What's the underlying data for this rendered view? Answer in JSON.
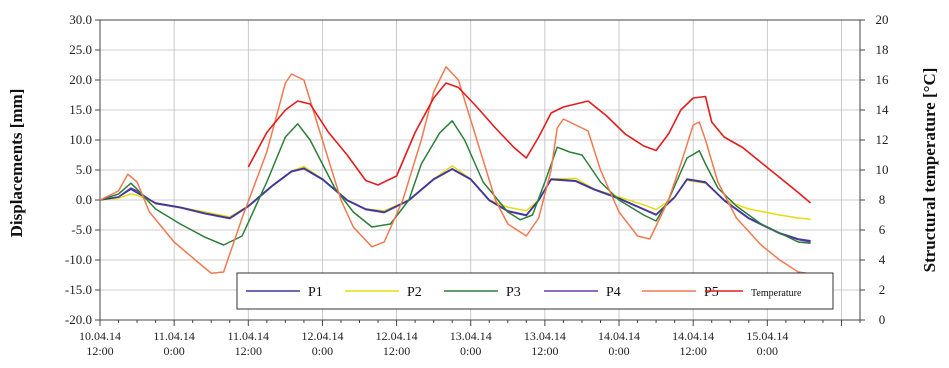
{
  "chart_data": {
    "type": "line",
    "xlabel": "",
    "ylabel": "Displacements [mm]",
    "y2label": "Structural temperature  [°C]",
    "xticks": [
      {
        "l1": "10.04.14",
        "l2": "12:00"
      },
      {
        "l1": "11.04.14",
        "l2": "0:00"
      },
      {
        "l1": "11.04.14",
        "l2": "12:00"
      },
      {
        "l1": "12.04.14",
        "l2": "0:00"
      },
      {
        "l1": "12.04.14",
        "l2": "12:00"
      },
      {
        "l1": "13.04.14",
        "l2": "0:00"
      },
      {
        "l1": "13.04.14",
        "l2": "12:00"
      },
      {
        "l1": "14.04.14",
        "l2": "0:00"
      },
      {
        "l1": "14.04.14",
        "l2": "12:00"
      },
      {
        "l1": "15.04.14",
        "l2": "0:00"
      }
    ],
    "x_unit": "hours since 10.04.14 12:00",
    "xlim": [
      0,
      123
    ],
    "ylim": [
      -20,
      30
    ],
    "yticks": [
      "30.0",
      "25.0",
      "20.0",
      "15.0",
      "10.0",
      "5.0",
      "0.0",
      "-5.0",
      "-10.0",
      "-15.0",
      "-20.0"
    ],
    "y2lim": [
      0,
      20
    ],
    "y2ticks": [
      "20",
      "18",
      "16",
      "14",
      "12",
      "10",
      "8",
      "6",
      "4",
      "2",
      "0"
    ],
    "grid": true,
    "legend_position": "bottom-center",
    "series": [
      {
        "name": "P1",
        "color": "#3a3a9a",
        "axis": "left",
        "points": [
          [
            0,
            0
          ],
          [
            3,
            0.5
          ],
          [
            5,
            1.8
          ],
          [
            6,
            1.2
          ],
          [
            9,
            -0.5
          ],
          [
            13,
            -1.2
          ],
          [
            17,
            -2.2
          ],
          [
            21,
            -3
          ],
          [
            24,
            -1
          ],
          [
            28,
            2.5
          ],
          [
            31,
            4.8
          ],
          [
            33,
            5.3
          ],
          [
            36,
            3.5
          ],
          [
            40,
            0
          ],
          [
            43,
            -1.5
          ],
          [
            46,
            -2
          ],
          [
            50,
            0
          ],
          [
            54,
            3.5
          ],
          [
            57,
            5.2
          ],
          [
            60,
            3.5
          ],
          [
            63,
            0
          ],
          [
            66,
            -1.8
          ],
          [
            69,
            -2.5
          ],
          [
            71,
            0
          ],
          [
            73,
            3.5
          ],
          [
            77,
            3.2
          ],
          [
            80,
            1.8
          ],
          [
            84,
            0.3
          ],
          [
            88,
            -1.5
          ],
          [
            90,
            -2.4
          ],
          [
            93,
            0.5
          ],
          [
            95,
            3.5
          ],
          [
            98,
            3
          ],
          [
            101,
            0
          ],
          [
            105,
            -3
          ],
          [
            110,
            -5.5
          ],
          [
            113,
            -6.5
          ],
          [
            115,
            -6.8
          ]
        ]
      },
      {
        "name": "P2",
        "color": "#e8dc10",
        "axis": "left",
        "points": [
          [
            0,
            0
          ],
          [
            3,
            0.3
          ],
          [
            5,
            1
          ],
          [
            6,
            0.8
          ],
          [
            9,
            -0.5
          ],
          [
            13,
            -1.2
          ],
          [
            17,
            -2
          ],
          [
            21,
            -2.8
          ],
          [
            24,
            -1
          ],
          [
            28,
            2.5
          ],
          [
            31,
            4.8
          ],
          [
            33,
            5.6
          ],
          [
            36,
            3.5
          ],
          [
            40,
            0
          ],
          [
            43,
            -1.5
          ],
          [
            46,
            -1.8
          ],
          [
            50,
            0
          ],
          [
            54,
            3.5
          ],
          [
            57,
            5.7
          ],
          [
            60,
            3.5
          ],
          [
            63,
            0
          ],
          [
            66,
            -1.2
          ],
          [
            69,
            -1.8
          ],
          [
            71,
            0
          ],
          [
            73,
            3.5
          ],
          [
            77,
            3.6
          ],
          [
            80,
            1.8
          ],
          [
            84,
            0.5
          ],
          [
            88,
            -0.8
          ],
          [
            90,
            -1.6
          ],
          [
            93,
            0.5
          ],
          [
            95,
            3.3
          ],
          [
            98,
            2.8
          ],
          [
            101,
            0
          ],
          [
            105,
            -1.5
          ],
          [
            110,
            -2.5
          ],
          [
            113,
            -3
          ],
          [
            115,
            -3.2
          ]
        ]
      },
      {
        "name": "P3",
        "color": "#2e7d3a",
        "axis": "left",
        "points": [
          [
            0,
            0
          ],
          [
            3,
            1
          ],
          [
            5,
            2.8
          ],
          [
            6,
            1.8
          ],
          [
            9,
            -1.5
          ],
          [
            13,
            -4
          ],
          [
            17,
            -6.2
          ],
          [
            20,
            -7.5
          ],
          [
            23,
            -6
          ],
          [
            27,
            3
          ],
          [
            30,
            10.5
          ],
          [
            32,
            12.7
          ],
          [
            34,
            10
          ],
          [
            38,
            2
          ],
          [
            41,
            -2
          ],
          [
            44,
            -4.5
          ],
          [
            47,
            -4
          ],
          [
            50,
            0
          ],
          [
            52,
            6
          ],
          [
            55,
            11.2
          ],
          [
            57,
            13.2
          ],
          [
            59,
            10
          ],
          [
            62,
            3
          ],
          [
            66,
            -2
          ],
          [
            68,
            -3.3
          ],
          [
            70,
            -2.5
          ],
          [
            72,
            3
          ],
          [
            74,
            8.8
          ],
          [
            76,
            8
          ],
          [
            78,
            7.5
          ],
          [
            81,
            3
          ],
          [
            84,
            0
          ],
          [
            88,
            -2.5
          ],
          [
            90,
            -3.5
          ],
          [
            92,
            0
          ],
          [
            95,
            7
          ],
          [
            97,
            8.2
          ],
          [
            98,
            6
          ],
          [
            100,
            2
          ],
          [
            103,
            -1
          ],
          [
            107,
            -4
          ],
          [
            110,
            -5.5
          ],
          [
            113,
            -7
          ],
          [
            115,
            -7.2
          ]
        ]
      },
      {
        "name": "P4",
        "color": "#6a3ab0",
        "axis": "left",
        "points": [
          [
            0,
            0
          ],
          [
            3,
            0.5
          ],
          [
            5,
            2
          ],
          [
            6,
            1.5
          ],
          [
            9,
            -0.6
          ],
          [
            13,
            -1.3
          ],
          [
            17,
            -2.3
          ],
          [
            21,
            -3.1
          ],
          [
            24,
            -1.1
          ],
          [
            28,
            2.4
          ],
          [
            31,
            4.7
          ],
          [
            33,
            5.2
          ],
          [
            36,
            3.4
          ],
          [
            40,
            -0.1
          ],
          [
            43,
            -1.6
          ],
          [
            46,
            -2.1
          ],
          [
            50,
            -0.1
          ],
          [
            54,
            3.4
          ],
          [
            57,
            5.1
          ],
          [
            60,
            3.4
          ],
          [
            63,
            -0.1
          ],
          [
            66,
            -1.9
          ],
          [
            69,
            -2.6
          ],
          [
            71,
            -0.1
          ],
          [
            73,
            3.4
          ],
          [
            77,
            3.1
          ],
          [
            80,
            1.7
          ],
          [
            84,
            0.2
          ],
          [
            88,
            -1.6
          ],
          [
            90,
            -2.5
          ],
          [
            93,
            0.4
          ],
          [
            95,
            3.4
          ],
          [
            98,
            2.9
          ],
          [
            101,
            -0.1
          ],
          [
            105,
            -3.1
          ],
          [
            110,
            -5.6
          ],
          [
            113,
            -6.6
          ],
          [
            115,
            -7
          ]
        ]
      },
      {
        "name": "P5",
        "color": "#f07a50",
        "axis": "left",
        "points": [
          [
            0,
            0
          ],
          [
            3,
            1.5
          ],
          [
            4.5,
            4.3
          ],
          [
            6,
            3
          ],
          [
            8,
            -2
          ],
          [
            12,
            -7
          ],
          [
            16,
            -10.5
          ],
          [
            18,
            -12.2
          ],
          [
            20,
            -12
          ],
          [
            23,
            -3
          ],
          [
            27,
            8
          ],
          [
            30,
            19.5
          ],
          [
            31,
            21
          ],
          [
            33,
            20
          ],
          [
            36,
            10
          ],
          [
            39,
            0
          ],
          [
            41,
            -4.5
          ],
          [
            44,
            -7.8
          ],
          [
            46,
            -7
          ],
          [
            49,
            0
          ],
          [
            52,
            10
          ],
          [
            54,
            18
          ],
          [
            56,
            22.2
          ],
          [
            58,
            20
          ],
          [
            61,
            10
          ],
          [
            64,
            0
          ],
          [
            66,
            -4
          ],
          [
            69,
            -6
          ],
          [
            71,
            -3
          ],
          [
            73,
            5
          ],
          [
            74,
            12
          ],
          [
            75,
            13.5
          ],
          [
            77,
            12.5
          ],
          [
            79,
            11.5
          ],
          [
            81,
            5
          ],
          [
            84,
            -2
          ],
          [
            87,
            -6
          ],
          [
            89,
            -6.5
          ],
          [
            92,
            0
          ],
          [
            94,
            6
          ],
          [
            96,
            12.5
          ],
          [
            97,
            13
          ],
          [
            98,
            10
          ],
          [
            100,
            3
          ],
          [
            103,
            -3
          ],
          [
            107,
            -7.5
          ],
          [
            110,
            -10
          ],
          [
            113,
            -12
          ],
          [
            115,
            -12.3
          ]
        ]
      },
      {
        "name": "Temperature",
        "color": "#e11e1e",
        "axis": "right",
        "points": [
          [
            24,
            10.2
          ],
          [
            27,
            12.5
          ],
          [
            30,
            14
          ],
          [
            32,
            14.6
          ],
          [
            34,
            14.4
          ],
          [
            37,
            12.5
          ],
          [
            40,
            11
          ],
          [
            43,
            9.3
          ],
          [
            45,
            9
          ],
          [
            48,
            9.6
          ],
          [
            51,
            12.5
          ],
          [
            54,
            14.8
          ],
          [
            56,
            15.8
          ],
          [
            58,
            15.5
          ],
          [
            61,
            14.2
          ],
          [
            64,
            12.8
          ],
          [
            67,
            11.5
          ],
          [
            69,
            10.8
          ],
          [
            71,
            12.2
          ],
          [
            73,
            13.8
          ],
          [
            75,
            14.2
          ],
          [
            77,
            14.4
          ],
          [
            79,
            14.6
          ],
          [
            82,
            13.6
          ],
          [
            85,
            12.4
          ],
          [
            88,
            11.6
          ],
          [
            90,
            11.3
          ],
          [
            92,
            12.4
          ],
          [
            94,
            14
          ],
          [
            96,
            14.8
          ],
          [
            98,
            14.9
          ],
          [
            99,
            13.2
          ],
          [
            101,
            12.2
          ],
          [
            104,
            11.5
          ],
          [
            107,
            10.5
          ],
          [
            110,
            9.5
          ],
          [
            113,
            8.5
          ],
          [
            115,
            7.8
          ]
        ]
      }
    ]
  }
}
